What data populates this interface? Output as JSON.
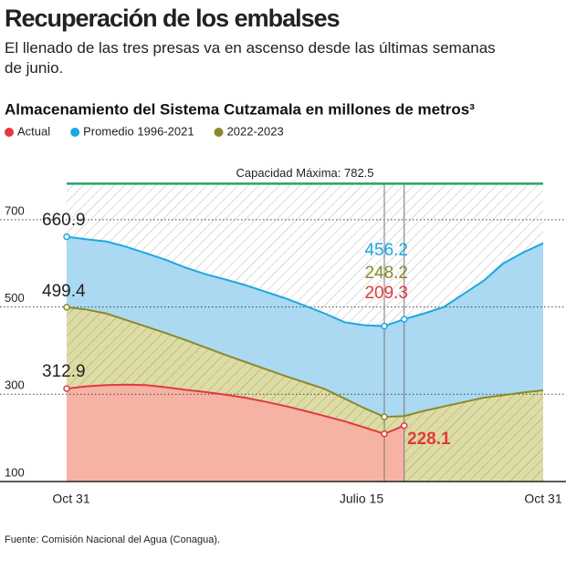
{
  "title": "Recuperación de los embalses",
  "subtitle": "El llenado de las tres presas va en ascenso desde las últimas semanas de junio.",
  "chart_data": {
    "type": "area",
    "title": "Almacenamiento del Sistema Cutzamala en millones de metros³",
    "categories": [
      "Oct 31",
      null,
      null,
      null,
      null,
      null,
      null,
      null,
      null,
      null,
      null,
      null,
      null,
      null,
      null,
      null,
      "Julio 15",
      null,
      null,
      null,
      null,
      null,
      null,
      null,
      "Oct 31"
    ],
    "series": [
      {
        "name": "Actual",
        "color": "#e2383f",
        "fill": "#f6b3a3",
        "values": [
          312.9,
          318,
          321,
          322,
          321,
          316,
          310,
          305,
          299,
          292,
          283,
          273,
          262,
          250,
          238,
          224,
          209.3,
          228.1,
          null,
          null,
          null,
          null,
          null,
          null,
          null
        ]
      },
      {
        "name": "Promedio 1996-2021",
        "color": "#1ea7e1",
        "fill": "#aad9f1",
        "values": [
          660.9,
          655,
          650,
          638,
          623,
          608,
          590,
          575,
          563,
          550,
          535,
          520,
          503,
          485,
          465,
          458,
          456.2,
          472,
          485,
          500,
          530,
          560,
          600,
          625,
          646
        ]
      },
      {
        "name": "2022-2023",
        "color": "#8b8a2b",
        "fill": "#dedca6",
        "values": [
          499.4,
          494,
          485,
          470,
          455,
          440,
          424,
          407,
          390,
          374,
          358,
          342,
          327,
          312,
          290,
          268,
          248.2,
          250,
          262,
          272,
          282,
          292,
          298,
          304,
          309
        ]
      }
    ],
    "capacity": {
      "value": 782.5,
      "label": "Capacidad Máxima: 782.5",
      "color": "#2aa36b"
    },
    "ylim": [
      100,
      800
    ],
    "yticks": [
      100,
      300,
      500,
      700
    ],
    "grid": true,
    "source": "Fuente: Comisión Nacional del Agua (Conagua)."
  }
}
